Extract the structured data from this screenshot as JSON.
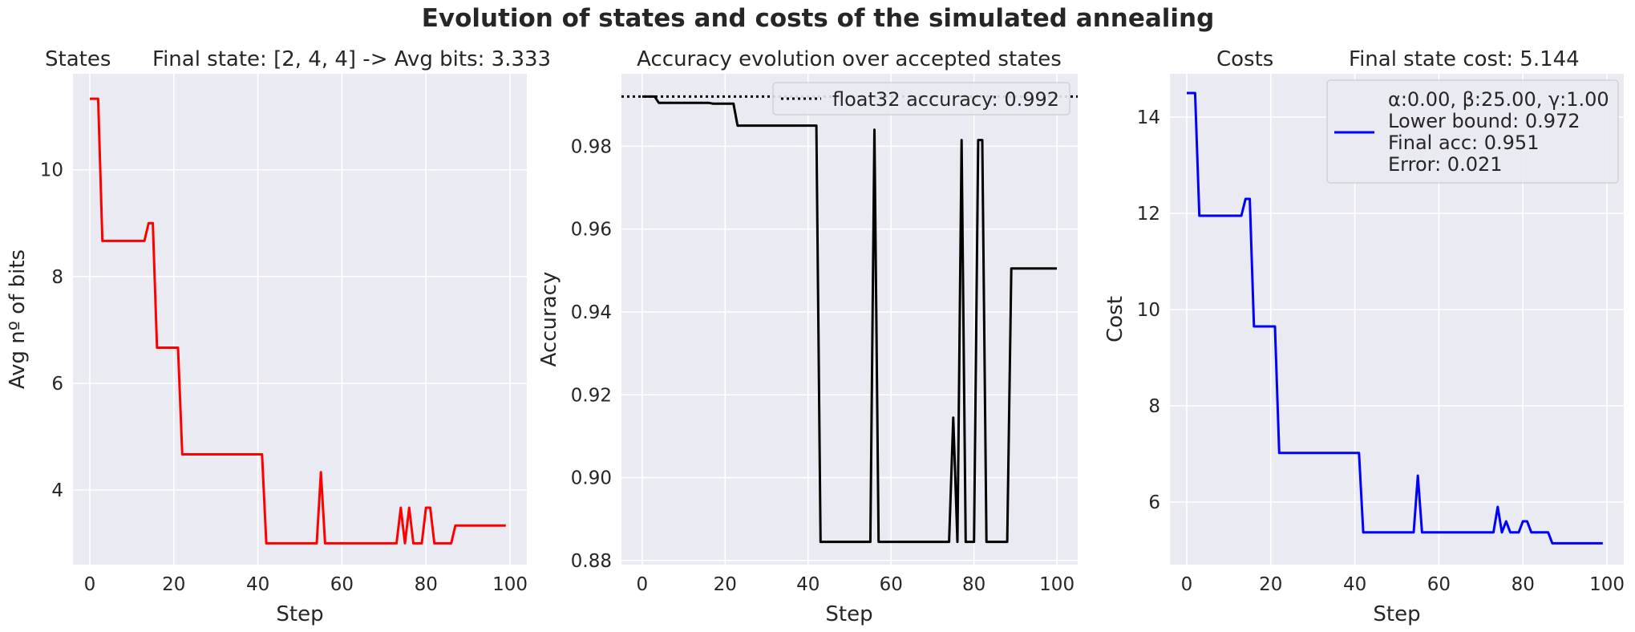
{
  "suptitle": "Evolution of states and costs of the simulated annealing",
  "colors": {
    "axes_bg": "#eaeaf2",
    "grid": "#ffffff",
    "text": "#262626"
  },
  "chart_data": [
    {
      "type": "line",
      "title_left": "States",
      "title_right": "Final state: [2, 4, 4] -> Avg bits: 3.333",
      "xlabel": "Step",
      "ylabel": "Avg nº of bits",
      "xlim": [
        -4,
        104
      ],
      "ylim": [
        2.6,
        11.8
      ],
      "xticks": [
        0,
        20,
        40,
        60,
        80,
        100
      ],
      "yticks": [
        4,
        6,
        8,
        10
      ],
      "grid": true,
      "series": [
        {
          "color": "#ff0000",
          "x": [
            0,
            2,
            3,
            13,
            14,
            15,
            16,
            21,
            22,
            41,
            42,
            54,
            55,
            56,
            73,
            74,
            75,
            76,
            77,
            79,
            80,
            81,
            82,
            86,
            87,
            99
          ],
          "y": [
            11.333,
            11.333,
            8.667,
            8.667,
            9.0,
            9.0,
            6.667,
            6.667,
            4.667,
            4.667,
            3.0,
            3.0,
            4.333,
            3.0,
            3.0,
            3.667,
            3.0,
            3.667,
            3.0,
            3.0,
            3.667,
            3.667,
            3.0,
            3.0,
            3.333,
            3.333
          ]
        }
      ]
    },
    {
      "type": "line",
      "title": "Accuracy evolution over accepted states",
      "xlabel": "Step",
      "ylabel": "Accuracy",
      "xlim": [
        -5,
        105
      ],
      "ylim": [
        0.879,
        0.9975
      ],
      "xticks": [
        0,
        20,
        40,
        60,
        80,
        100
      ],
      "yticks": [
        0.88,
        0.9,
        0.92,
        0.94,
        0.96,
        0.98
      ],
      "ytick_labels": [
        "0.88",
        "0.90",
        "0.92",
        "0.94",
        "0.96",
        "0.98"
      ],
      "grid": true,
      "legend": {
        "placement": "upper right",
        "entries": [
          {
            "label": "float32 accuracy: 0.992",
            "style": "dotted"
          }
        ]
      },
      "hline": {
        "y": 0.992,
        "color": "#000000",
        "style": "dotted"
      },
      "series": [
        {
          "color": "#000000",
          "x": [
            0,
            3,
            4,
            16,
            17,
            22,
            23,
            42,
            43,
            55,
            56,
            57,
            74,
            75,
            76,
            77,
            78,
            80,
            81,
            82,
            83,
            88,
            89,
            100
          ],
          "y": [
            0.992,
            0.992,
            0.9905,
            0.9905,
            0.9903,
            0.9903,
            0.985,
            0.985,
            0.8845,
            0.8845,
            0.984,
            0.8845,
            0.8845,
            0.9145,
            0.8845,
            0.9815,
            0.8845,
            0.8845,
            0.9815,
            0.9815,
            0.8845,
            0.8845,
            0.9505,
            0.9505
          ]
        }
      ]
    },
    {
      "type": "line",
      "title_left": "Costs",
      "title_right": "Final state cost: 5.144",
      "xlabel": "Step",
      "ylabel": "Cost",
      "xlim": [
        -4,
        104
      ],
      "ylim": [
        4.7,
        14.9
      ],
      "xticks": [
        0,
        20,
        40,
        60,
        80,
        100
      ],
      "yticks": [
        6,
        8,
        10,
        12,
        14
      ],
      "grid": true,
      "legend": {
        "placement": "upper right",
        "entries": [
          {
            "label_lines": [
              "α:0.00, β:25.00, γ:1.00",
              "Lower bound: 0.972",
              "Final acc: 0.951",
              "Error: 0.021"
            ],
            "color": "#0000ff"
          }
        ]
      },
      "series": [
        {
          "color": "#0000ff",
          "x": [
            0,
            2,
            3,
            13,
            14,
            15,
            16,
            21,
            22,
            41,
            42,
            54,
            55,
            56,
            73,
            74,
            75,
            76,
            77,
            79,
            80,
            81,
            82,
            86,
            87,
            99
          ],
          "y": [
            14.5,
            14.5,
            11.95,
            11.95,
            12.3,
            12.3,
            9.65,
            9.65,
            7.02,
            7.02,
            5.37,
            5.37,
            6.55,
            5.37,
            5.37,
            5.9,
            5.37,
            5.6,
            5.37,
            5.37,
            5.6,
            5.6,
            5.37,
            5.37,
            5.144,
            5.144
          ]
        }
      ]
    }
  ]
}
